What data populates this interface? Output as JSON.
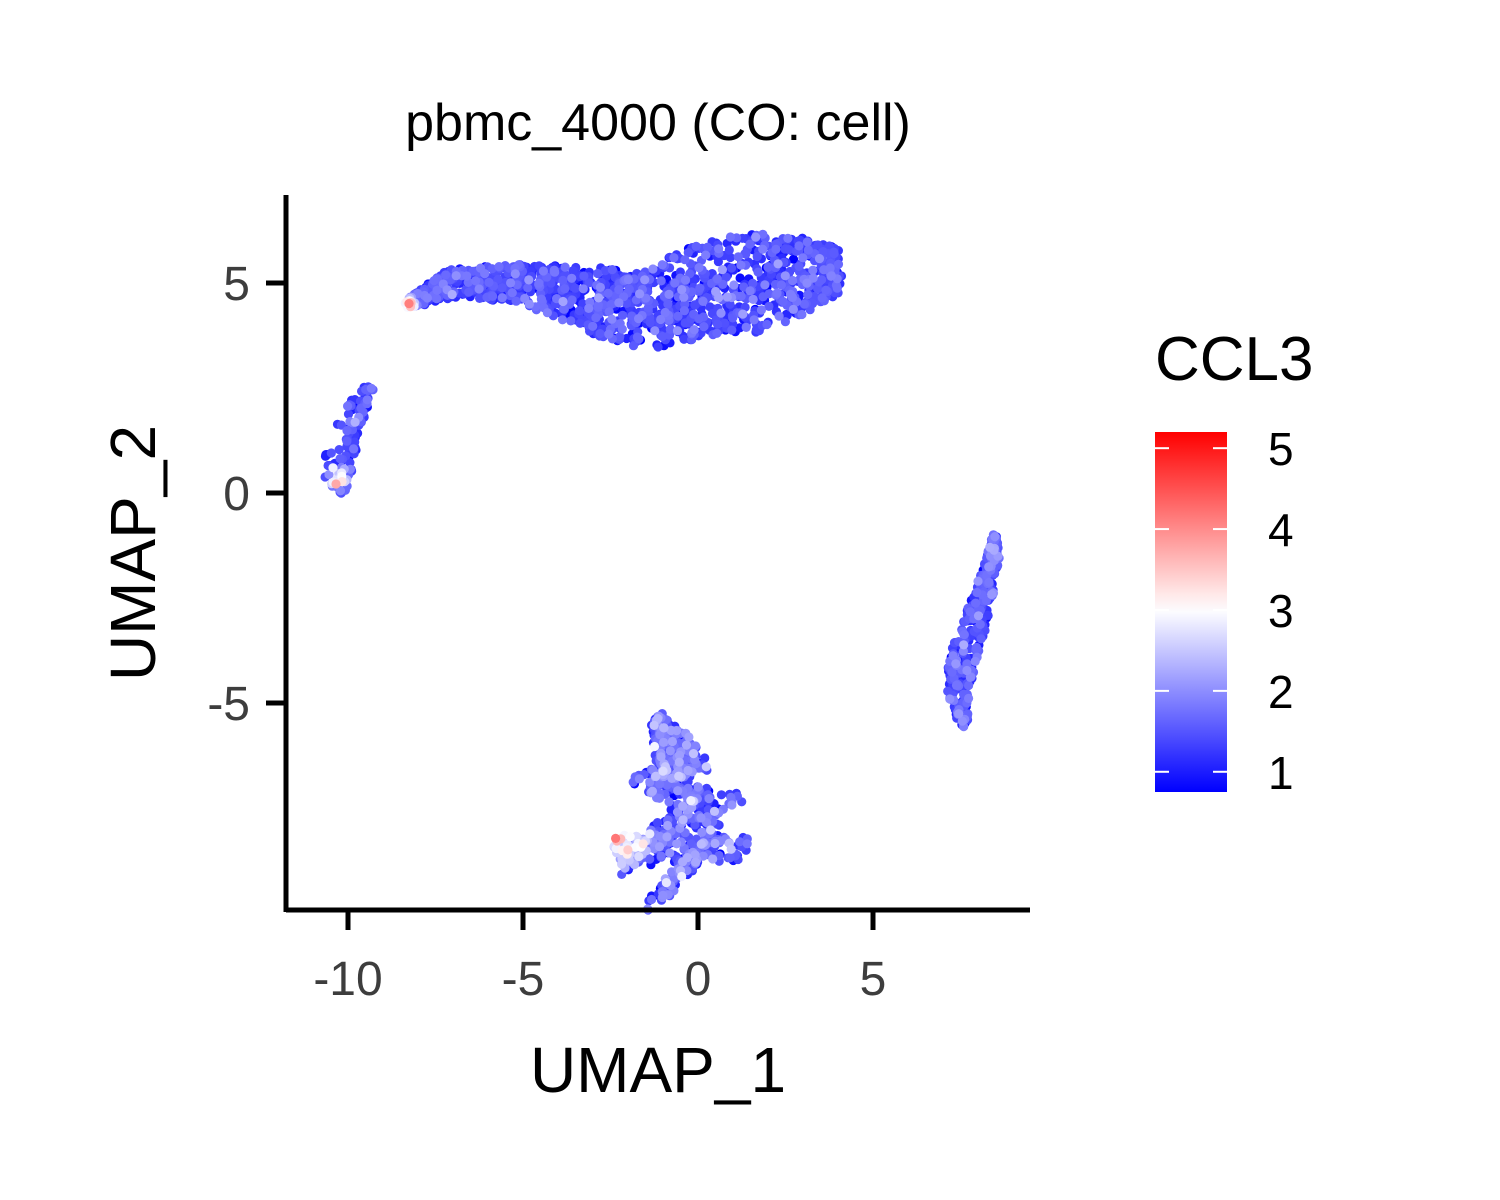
{
  "chart_data": {
    "type": "scatter",
    "title": "pbmc_4000 (CO: cell)",
    "xlabel": "UMAP_1",
    "ylabel": "UMAP_2",
    "xlim": [
      -12,
      9.5
    ],
    "ylim": [
      -10,
      7
    ],
    "xticks": [
      -10,
      -5,
      0,
      5
    ],
    "yticks": [
      -5,
      0,
      5
    ],
    "xtick_labels": [
      "-10",
      "-5",
      "0",
      "5"
    ],
    "ytick_labels": [
      "-5",
      "0",
      "5"
    ],
    "grid": false,
    "legend": {
      "title": "CCL3",
      "position": "right",
      "range": [
        0.75,
        5.2
      ],
      "ticks": [
        1,
        2,
        3,
        4,
        5
      ],
      "tick_labels": [
        "1",
        "2",
        "3",
        "4",
        "5"
      ],
      "low_color": "#0000ff",
      "mid_color": "#ffffff",
      "high_color": "#ff0000",
      "midpoint": 3
    },
    "clusters": [
      {
        "name": "top",
        "count": 1400,
        "spine": [
          [
            -8.3,
            4.5
          ],
          [
            -7,
            5.0
          ],
          [
            -5,
            5.0
          ],
          [
            -3,
            4.6
          ],
          [
            -1.5,
            4.3
          ],
          [
            0,
            4.8
          ],
          [
            1.5,
            5.0
          ],
          [
            3,
            5.2
          ],
          [
            4,
            5.3
          ]
        ],
        "halfwidth": [
          0.1,
          0.35,
          0.45,
          0.8,
          0.9,
          1.1,
          1.2,
          0.9,
          0.55
        ],
        "expr_mean": 1.35,
        "expr_sd": 0.3,
        "hot": [
          {
            "x": -8.3,
            "y": 4.5,
            "r": 0.3,
            "boost": 2.8
          }
        ]
      },
      {
        "name": "left",
        "count": 110,
        "spine": [
          [
            -10.0,
            0.1
          ],
          [
            -10.3,
            0.6
          ],
          [
            -10.1,
            1.3
          ],
          [
            -9.8,
            1.9
          ],
          [
            -9.4,
            2.5
          ]
        ],
        "halfwidth": [
          0.3,
          0.45,
          0.4,
          0.3,
          0.15
        ],
        "expr_mean": 1.4,
        "expr_sd": 0.35,
        "hot": [
          {
            "x": -10.3,
            "y": 0.3,
            "r": 0.4,
            "boost": 2.6
          }
        ]
      },
      {
        "name": "right",
        "count": 350,
        "spine": [
          [
            7.6,
            -5.5
          ],
          [
            7.4,
            -4.6
          ],
          [
            7.7,
            -3.6
          ],
          [
            8.1,
            -2.6
          ],
          [
            8.4,
            -1.6
          ],
          [
            8.5,
            -1.0
          ]
        ],
        "halfwidth": [
          0.1,
          0.35,
          0.4,
          0.3,
          0.2,
          0.05
        ],
        "expr_mean": 1.45,
        "expr_sd": 0.3,
        "hot": []
      },
      {
        "name": "bottom",
        "count": 750,
        "spine": [
          [
            -1.2,
            -5.4
          ],
          [
            -0.7,
            -6.1
          ],
          [
            -0.3,
            -6.8
          ],
          [
            -0.8,
            -7.6
          ],
          [
            -0.5,
            -8.2
          ],
          [
            -0.5,
            -8.8
          ],
          [
            -0.3,
            -9.0
          ]
        ],
        "halfwidth": [
          0.2,
          0.55,
          0.7,
          1.5,
          2.0,
          1.7,
          0.7
        ],
        "expr_mean": 1.5,
        "expr_sd": 0.45,
        "hot": [
          {
            "x": -2.3,
            "y": -8.0,
            "r": 1.1,
            "boost": 2.4
          }
        ]
      }
    ]
  }
}
